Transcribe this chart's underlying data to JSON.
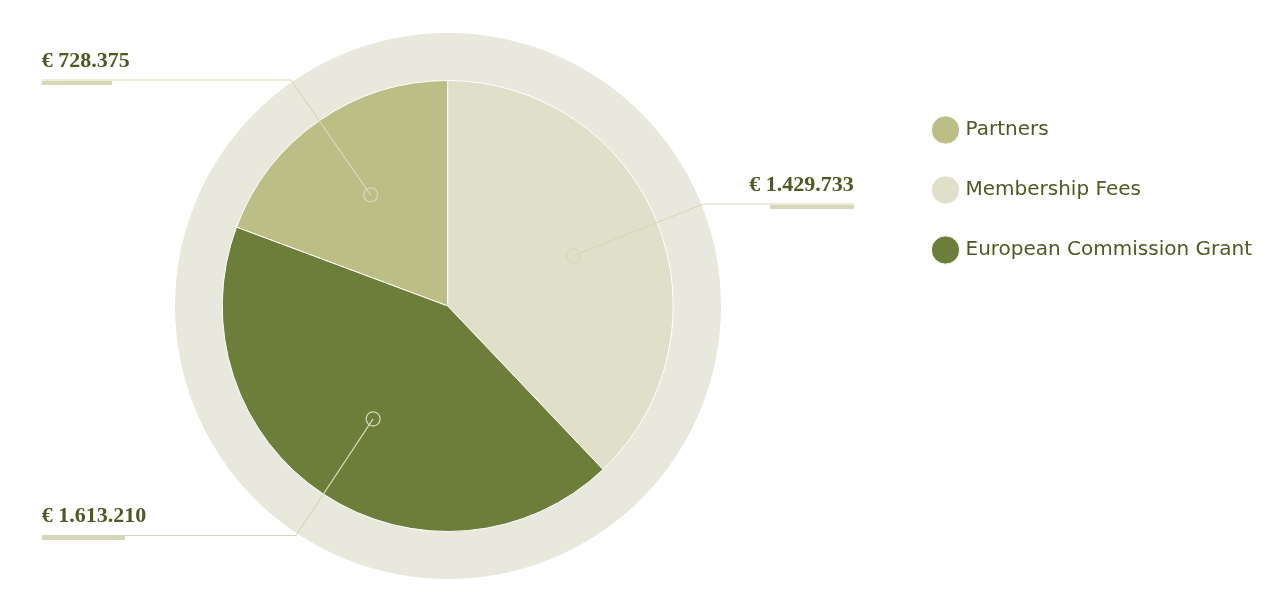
{
  "chart_data": {
    "type": "pie",
    "categories": [
      "Partners",
      "Membership Fees",
      "European Commission Grant"
    ],
    "values": [
      728375,
      1429733,
      1613210
    ],
    "value_labels": [
      "€ 728.375",
      "€ 1.429.733",
      "€ 1.613.210"
    ],
    "colors": [
      "#bcbf85",
      "#e0dfca",
      "#6d7d3a"
    ],
    "legend": "top right"
  }
}
